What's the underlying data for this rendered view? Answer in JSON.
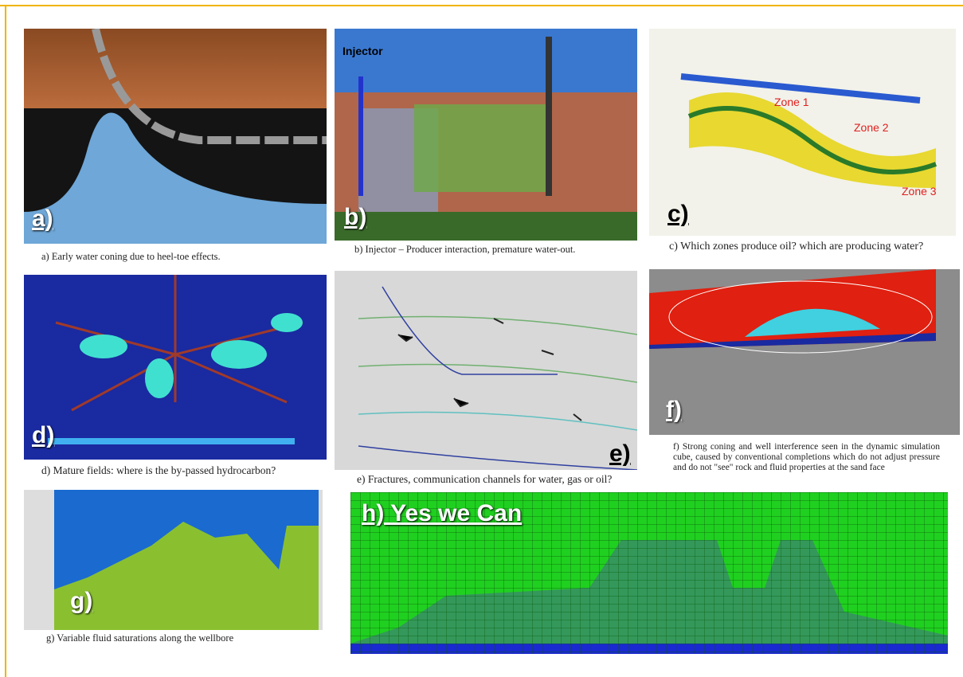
{
  "panels": [
    {
      "label": "a)",
      "caption": "a)   Early water coning due to heel-toe effects."
    },
    {
      "label": "b)",
      "caption": "b)   Injector – Producer interaction, premature water-out.",
      "annotations": [
        "Injector"
      ]
    },
    {
      "label": "c)",
      "caption": "c)   Which zones produce oil? which are producing water?",
      "annotations": [
        "Zone 1",
        "Zone 2",
        "Zone 3"
      ]
    },
    {
      "label": "d)",
      "caption": "d)   Mature fields: where is the by-passed hydrocarbon?"
    },
    {
      "label": "e)",
      "caption": "e)   Fractures, communication channels for water, gas or oil?"
    },
    {
      "label": "f)",
      "caption": "f)   Strong coning and well interference seen in the dynamic simulation cube, caused by conventional completions which do not adjust pressure and do not \"see\" rock and fluid properties at the sand face"
    },
    {
      "label": "g)",
      "caption": "g)   Variable fluid saturations along the wellbore"
    },
    {
      "label": "h) Yes we  Can"
    }
  ]
}
